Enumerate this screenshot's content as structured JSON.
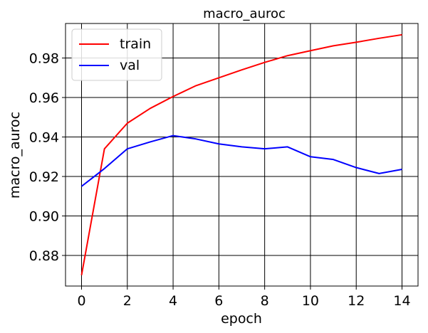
{
  "chart_data": {
    "type": "line",
    "title": "macro_auroc",
    "xlabel": "epoch",
    "ylabel": "macro_auroc",
    "xlim": [
      -0.7,
      14.7
    ],
    "ylim": [
      0.8645,
      0.9975
    ],
    "xticks": [
      0,
      2,
      4,
      6,
      8,
      10,
      12,
      14
    ],
    "yticks": [
      0.88,
      0.9,
      0.92,
      0.94,
      0.96,
      0.98
    ],
    "ytick_labels": [
      "0.88",
      "0.90",
      "0.92",
      "0.94",
      "0.96",
      "0.98"
    ],
    "grid": true,
    "legend_position": "top-left",
    "x": [
      0,
      1,
      2,
      3,
      4,
      5,
      6,
      7,
      8,
      9,
      10,
      11,
      12,
      13,
      14
    ],
    "series": [
      {
        "name": "train",
        "color": "#ff0000",
        "values": [
          0.87,
          0.934,
          0.947,
          0.9545,
          0.9605,
          0.966,
          0.97,
          0.974,
          0.9778,
          0.9812,
          0.9837,
          0.9862,
          0.988,
          0.99,
          0.9918
        ]
      },
      {
        "name": "val",
        "color": "#0000ff",
        "values": [
          0.915,
          0.924,
          0.934,
          0.9375,
          0.9407,
          0.939,
          0.9365,
          0.935,
          0.934,
          0.935,
          0.93,
          0.9286,
          0.9245,
          0.9215,
          0.9236
        ]
      }
    ]
  }
}
